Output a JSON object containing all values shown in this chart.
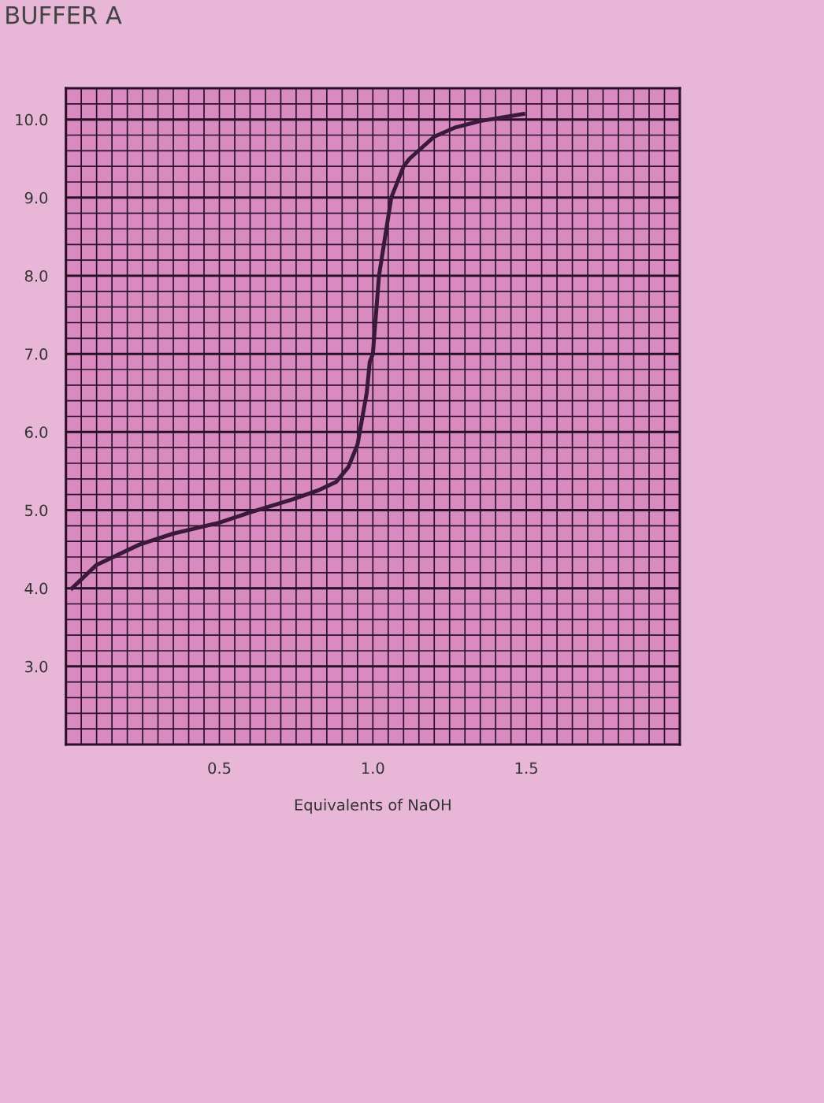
{
  "chart_data": {
    "type": "line",
    "title": "BUFFER A",
    "xlabel": "Equivalents of NaOH",
    "x": [
      0.02,
      0.1,
      0.24,
      0.35,
      0.5,
      0.6,
      0.74,
      0.82,
      0.88,
      0.92,
      0.95,
      0.98,
      0.99,
      1.0,
      1.02,
      1.06,
      1.1,
      1.12,
      1.2,
      1.27,
      1.35,
      1.49
    ],
    "series": [
      {
        "color": "#3a1a3a",
        "values": [
          4.0,
          4.3,
          4.56,
          4.7,
          4.84,
          4.97,
          5.14,
          5.25,
          5.36,
          5.55,
          5.84,
          6.5,
          6.9,
          7.0,
          8.0,
          9.0,
          9.4,
          9.5,
          9.78,
          9.9,
          9.98,
          10.07
        ]
      }
    ],
    "xlim": [
      0.0,
      2.0
    ],
    "ylim": [
      2.0,
      10.4
    ],
    "xticks": [
      0.5,
      {
        "value": 1.0,
        "label": "1.0"
      },
      1.5
    ],
    "yticks": [
      {
        "value": 3,
        "label": "3.0"
      },
      {
        "value": 4,
        "label": "4.0"
      },
      {
        "value": 5,
        "label": "5.0"
      },
      {
        "value": 6,
        "label": "6.0"
      },
      {
        "value": 7,
        "label": "7.0"
      },
      {
        "value": 8,
        "label": "8.0"
      },
      {
        "value": 9,
        "label": "9.0"
      },
      {
        "value": 10,
        "label": "10.0"
      }
    ],
    "grid": true,
    "marker": "none",
    "line_style": "solid"
  }
}
